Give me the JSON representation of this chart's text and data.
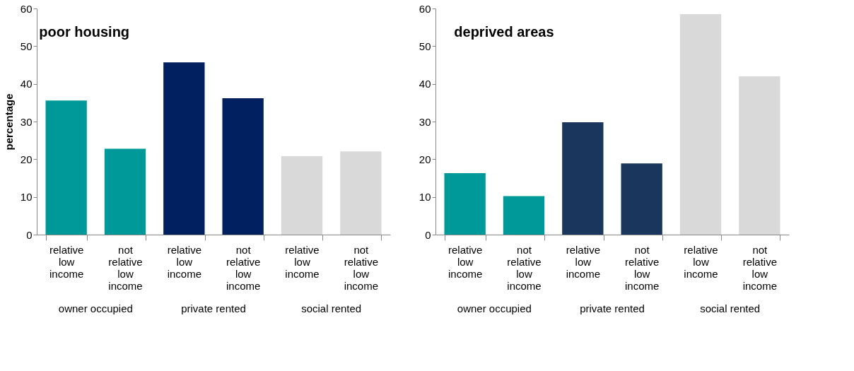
{
  "chart_data": [
    {
      "type": "bar",
      "title": "poor housing",
      "ylabel": "percentage",
      "categories": [
        "relative low income",
        "not relative low income",
        "relative low income",
        "not relative low income",
        "relative low income",
        "not relative low income"
      ],
      "values": [
        35.6,
        22.8,
        45.7,
        36.2,
        20.8,
        22.1
      ],
      "colors": [
        "#009999",
        "#009999",
        "#002060",
        "#002060",
        "#d9d9d9",
        "#d9d9d9"
      ],
      "annotations": [
        "owner occupied",
        "private rented",
        "social rented"
      ],
      "ylim": [
        0,
        60
      ],
      "yticks": [
        0,
        10,
        20,
        30,
        40,
        50,
        60
      ],
      "grid": false
    },
    {
      "type": "bar",
      "title": "deprived areas",
      "categories": [
        "relative low income",
        "not relative low income",
        "relative low income",
        "not relative low income",
        "relative low income",
        "not relative low income"
      ],
      "values": [
        16.3,
        10.2,
        29.8,
        18.9,
        58.5,
        42.0
      ],
      "colors": [
        "#009999",
        "#009999",
        "#1a365d",
        "#1a365d",
        "#d9d9d9",
        "#d9d9d9"
      ],
      "annotations": [
        "owner occupied",
        "private rented",
        "social rented"
      ],
      "ylim": [
        0,
        60
      ],
      "yticks": [
        0,
        10,
        20,
        30,
        40,
        50,
        60
      ],
      "grid": false
    }
  ]
}
